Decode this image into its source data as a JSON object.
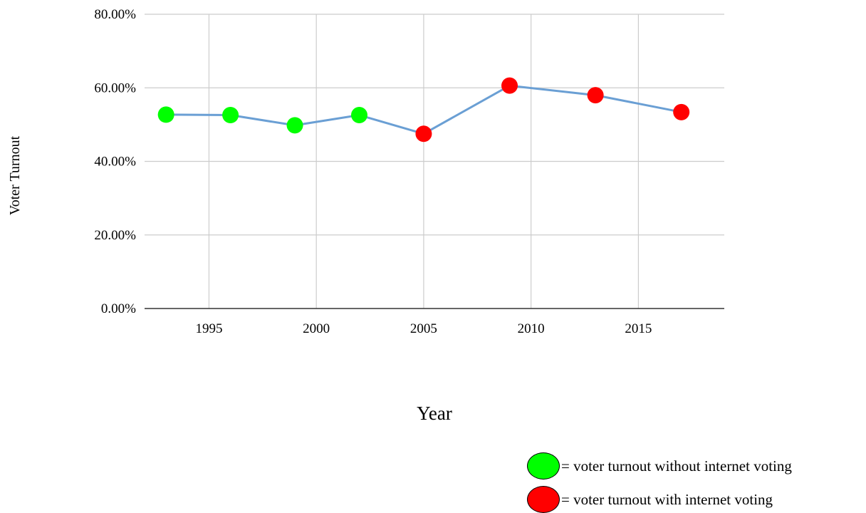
{
  "chart_data": {
    "type": "line",
    "title": "",
    "xlabel": "Year",
    "ylabel": "Voter Turnout",
    "xlim": [
      1992,
      2019
    ],
    "ylim": [
      0,
      80
    ],
    "x_ticks": [
      "1995",
      "2000",
      "2005",
      "2010",
      "2015"
    ],
    "y_ticks": [
      "0.00%",
      "20.00%",
      "40.00%",
      "60.00%",
      "80.00%"
    ],
    "grid": true,
    "line_color": "#6a9fd4",
    "series": [
      {
        "x": [
          1993,
          1996,
          1999,
          2002,
          2005,
          2009,
          2013,
          2017
        ],
        "y": [
          52.7,
          52.6,
          49.8,
          52.6,
          47.5,
          60.6,
          58.0,
          53.4
        ],
        "point_colors": [
          "#00ff00",
          "#00ff00",
          "#00ff00",
          "#00ff00",
          "#ff0000",
          "#ff0000",
          "#ff0000",
          "#ff0000"
        ]
      }
    ],
    "legend": [
      {
        "color": "#00ff00",
        "label": "= voter turnout without internet voting"
      },
      {
        "color": "#ff0000",
        "label": "= voter turnout with internet voting"
      }
    ]
  }
}
